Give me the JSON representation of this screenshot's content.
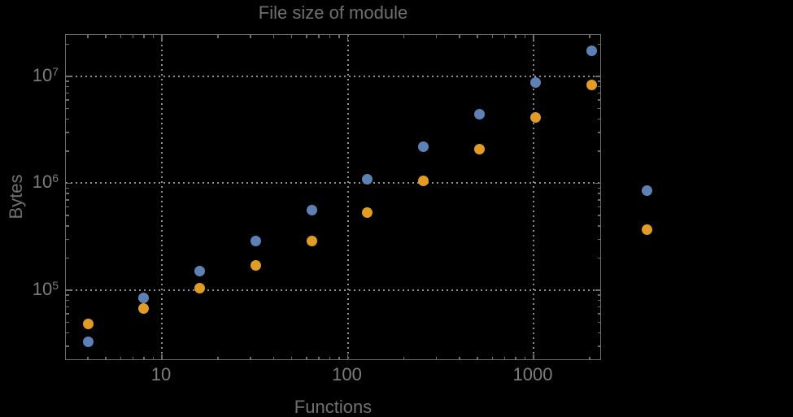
{
  "colors": {
    "background": "#000000",
    "frame": "#6e6e6e",
    "grid": "#8f8f8f",
    "title": "#6f6f6f",
    "tick_labels": "#7d7d7d",
    "axis_labels": "#707070"
  },
  "chart_data": {
    "type": "scatter",
    "title": "File size of module",
    "xlabel": "Functions",
    "ylabel": "Bytes",
    "x_scale": "log",
    "y_scale": "log",
    "grid": "dotted",
    "legend": "none",
    "x": [
      4,
      8,
      16,
      32,
      64,
      128,
      256,
      512,
      1024,
      2048,
      4096
    ],
    "series": [
      {
        "name": "blue",
        "color": "#5E81B5",
        "values": [
          33000,
          85000,
          150000,
          290000,
          560000,
          1100000,
          2200000,
          4400000,
          8800000,
          17500000,
          850000
        ]
      },
      {
        "name": "orange",
        "color": "#E19C24",
        "values": [
          48000,
          68000,
          104000,
          170000,
          290000,
          530000,
          1050000,
          2100000,
          4100000,
          8300000,
          370000
        ]
      }
    ],
    "axes": {
      "x": {
        "log_min": 0.4836,
        "log_max": 3.3676,
        "ticks": [
          {
            "value": 10,
            "label": "10"
          },
          {
            "value": 100,
            "label": "100"
          },
          {
            "value": 1000,
            "label": "1000"
          }
        ]
      },
      "y": {
        "log_min": 4.3384,
        "log_max": 7.3878,
        "ticks": [
          {
            "value": 100000,
            "base": "10",
            "exp": "5"
          },
          {
            "value": 1000000,
            "base": "10",
            "exp": "6"
          },
          {
            "value": 10000000,
            "base": "10",
            "exp": "7"
          }
        ]
      }
    }
  }
}
